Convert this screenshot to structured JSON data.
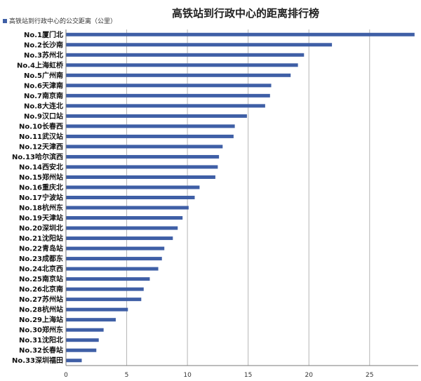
{
  "chart_data": {
    "type": "bar",
    "orientation": "horizontal",
    "title": "高铁站到行政中心的距离排行榜",
    "legend": {
      "position": "top-left",
      "label": "高铁站到行政中心的公交距离（公里）"
    },
    "series": [
      {
        "name": "高铁站到行政中心的公交距离（公里）",
        "color": "#3f5fa6",
        "values": [
          28.7,
          21.9,
          19.6,
          19.1,
          18.5,
          16.9,
          16.8,
          16.4,
          14.9,
          13.9,
          13.8,
          12.9,
          12.6,
          12.5,
          12.3,
          11.0,
          10.6,
          10.1,
          9.6,
          9.2,
          8.8,
          8.1,
          7.9,
          7.6,
          6.9,
          6.4,
          6.2,
          5.1,
          4.1,
          3.1,
          2.7,
          2.5,
          1.3
        ]
      }
    ],
    "categories": [
      "No.1厦门北",
      "No.2长沙南",
      "No.3苏州北",
      "No.4上海虹桥",
      "No.5广州南",
      "No.6天津南",
      "No.7南京南",
      "No.8大连北",
      "No.9汉口站",
      "No.10长春西",
      "No.11武汉站",
      "No.12天津西",
      "No.13哈尔滨西",
      "No.14西安北",
      "No.15郑州站",
      "No.16重庆北",
      "No.17宁波站",
      "No.18杭州东",
      "No.19天津站",
      "No.20深圳北",
      "No.21沈阳站",
      "No.22青岛站",
      "No.23成都东",
      "No.24北京西",
      "No.25南京站",
      "No.26北京南",
      "No.27苏州站",
      "No.28杭州站",
      "No.29上海站",
      "No.30郑州东",
      "No.31沈阳北",
      "No.32长春站",
      "No.33深圳福田"
    ],
    "xlim": [
      0,
      29
    ],
    "xticks": [
      0,
      5,
      10,
      15,
      20,
      25
    ],
    "xtick_labels": [
      "0",
      "5",
      "10",
      "15",
      "20",
      "25"
    ],
    "grid": {
      "vertical": true,
      "horizontal": false
    },
    "xlabel": "",
    "ylabel": ""
  }
}
